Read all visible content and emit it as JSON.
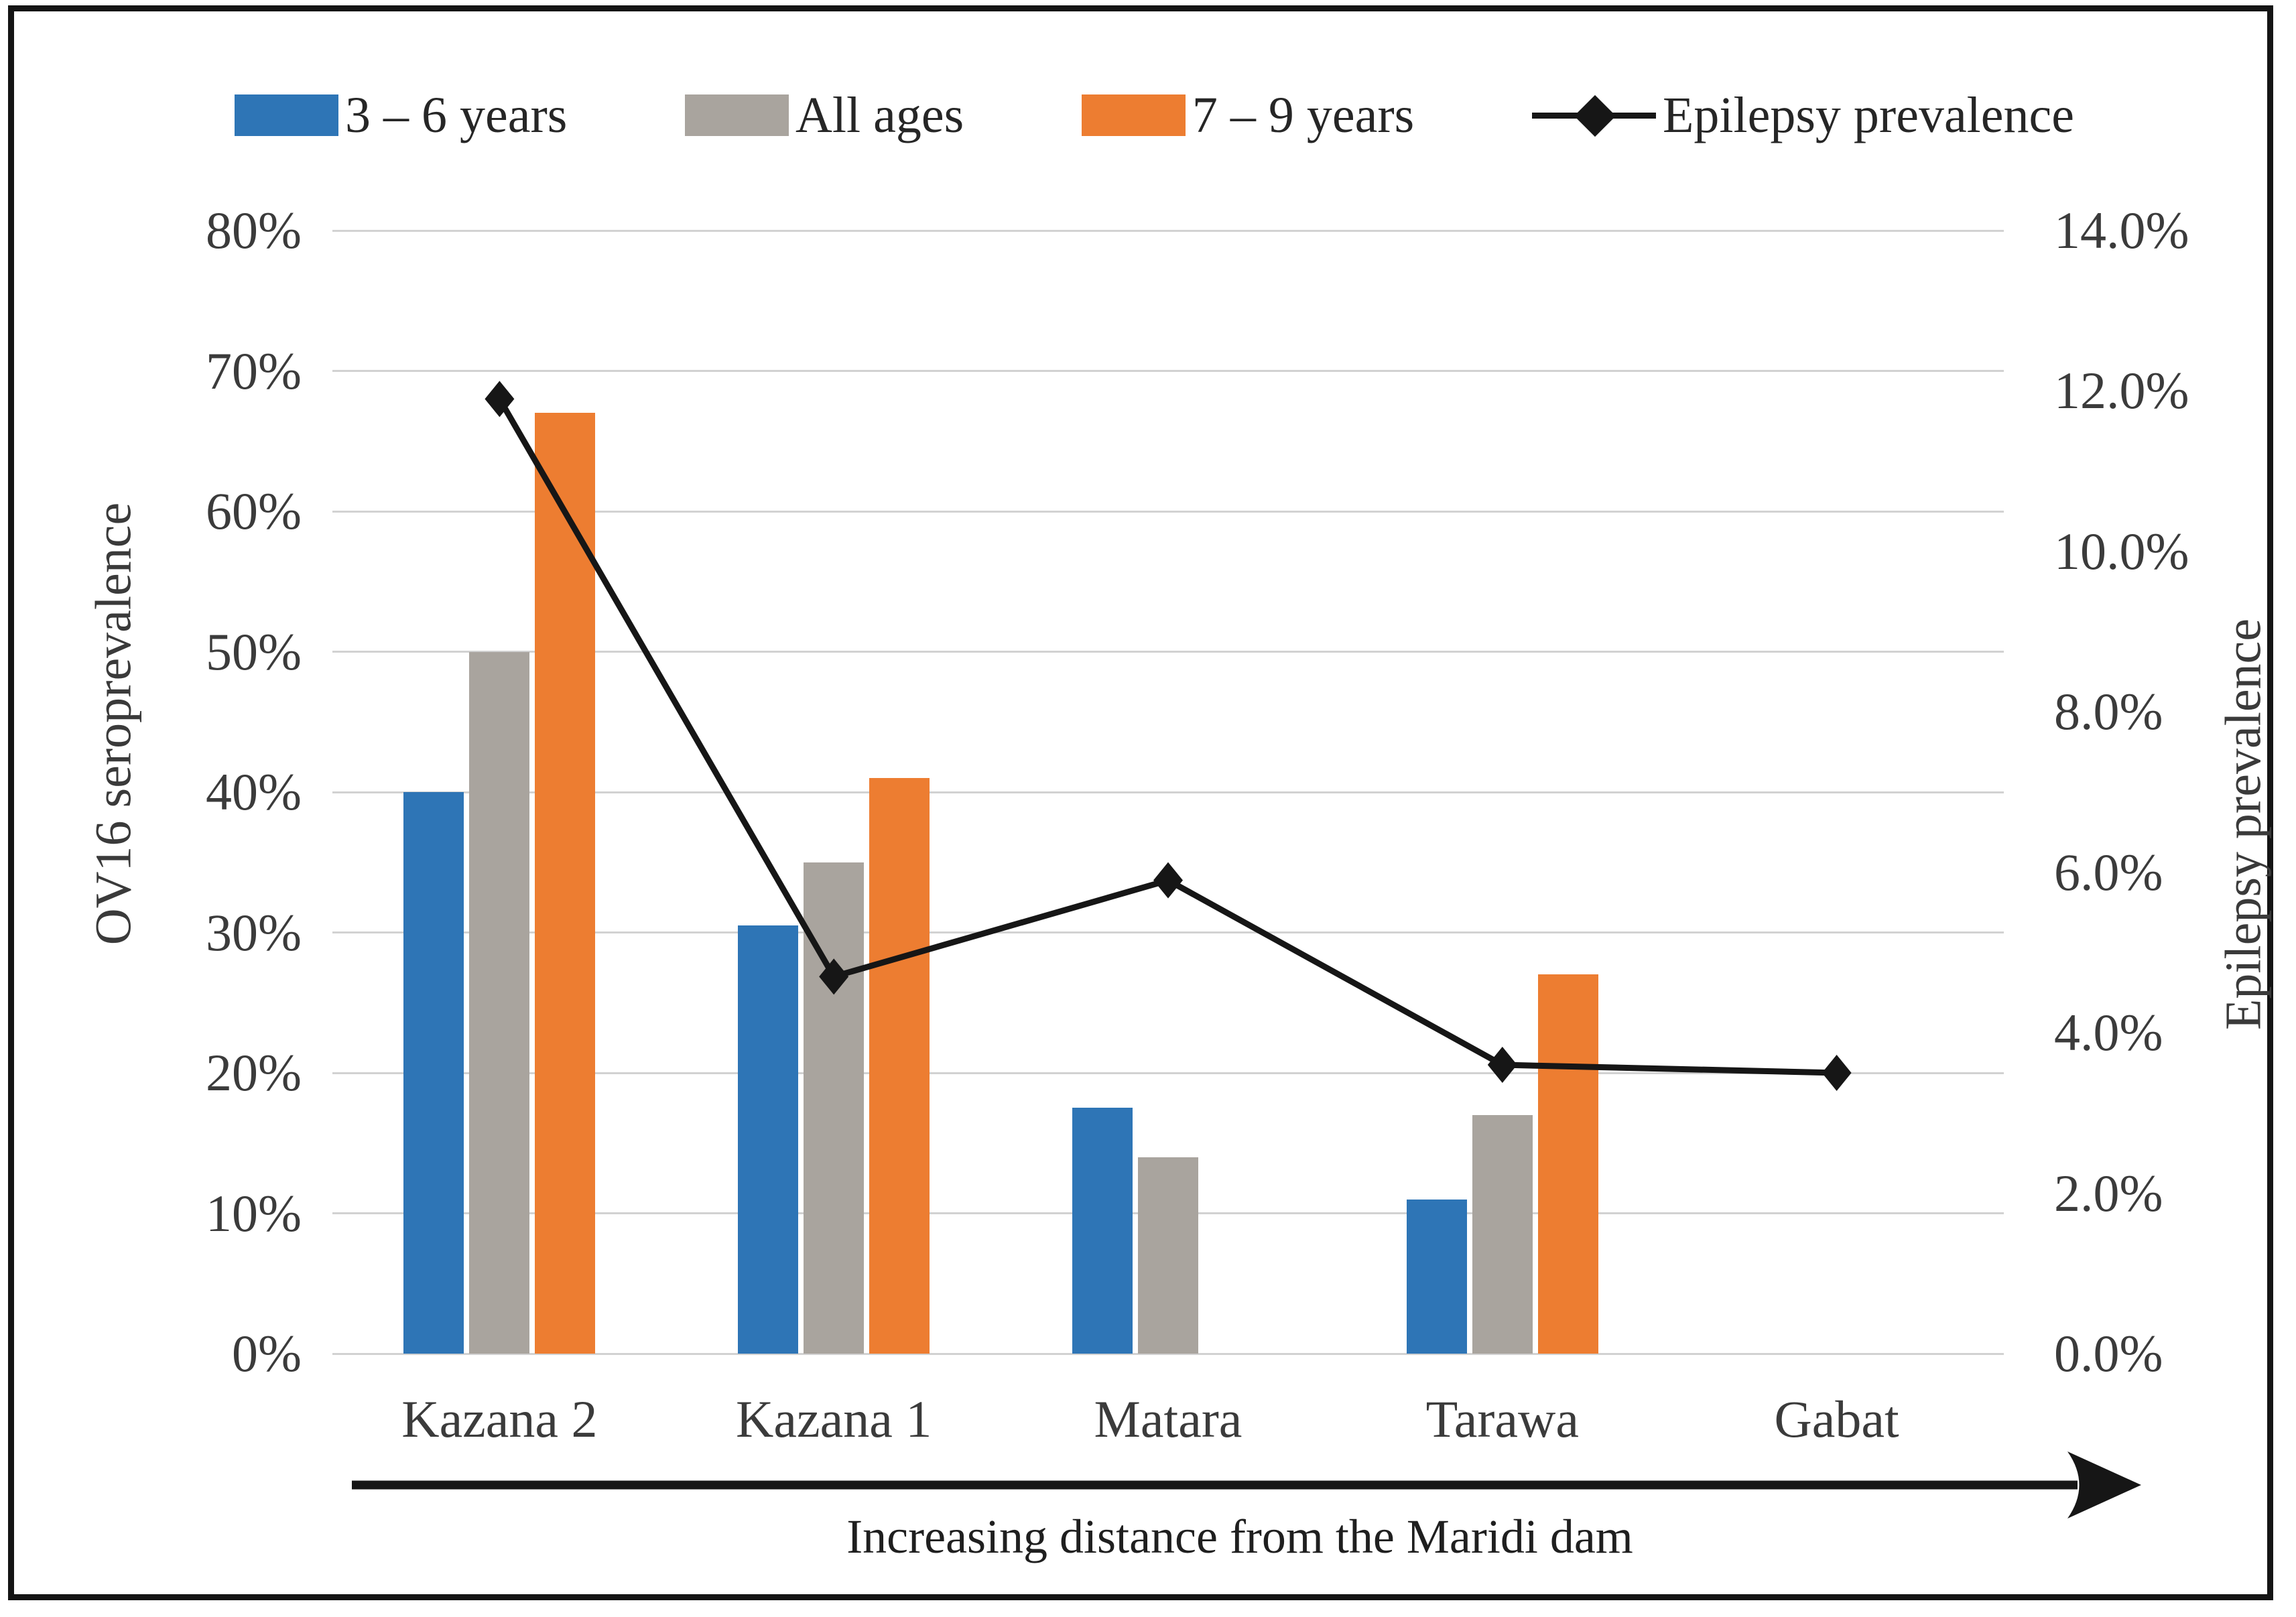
{
  "chart_data": {
    "type": "bar+line",
    "categories": [
      "Kazana 2",
      "Kazana 1",
      "Matara",
      "Tarawa",
      "Gabat"
    ],
    "bar_series": [
      {
        "name": "3 – 6 years",
        "color": "#2E75B6",
        "values": [
          40,
          30.5,
          17.5,
          11,
          null
        ]
      },
      {
        "name": "All ages",
        "color": "#A9A49E",
        "values": [
          50,
          35,
          14,
          17,
          null
        ]
      },
      {
        "name": "7 – 9 years",
        "color": "#ED7D31",
        "values": [
          67,
          41,
          null,
          27,
          null
        ]
      }
    ],
    "line_series": {
      "name": "Epilepsy prevalence",
      "color": "#161616",
      "axis": "right",
      "values": [
        11.9,
        4.7,
        5.9,
        3.6,
        3.5
      ]
    },
    "left_axis": {
      "title": "OV16 seroprevalence",
      "min": 0,
      "max": 80,
      "tick_step": 10,
      "tick_labels": [
        "0%",
        "10%",
        "20%",
        "30%",
        "40%",
        "50%",
        "60%",
        "70%",
        "80%"
      ]
    },
    "right_axis": {
      "title": "Epilepsy prevalence",
      "min": 0,
      "max": 14,
      "tick_step": 2,
      "tick_labels": [
        "0.0%",
        "2.0%",
        "4.0%",
        "6.0%",
        "8.0%",
        "10.0%",
        "12.0%",
        "14.0%"
      ]
    },
    "x_axis": {
      "caption": "Increasing distance from the Maridi dam"
    },
    "legend_position": "top",
    "grid": true,
    "colors": {
      "gridline": "#D2D2D2",
      "tick_text": "#3B3B3B",
      "caption_text": "#1F1F1F",
      "frame_border": "#141414"
    }
  }
}
